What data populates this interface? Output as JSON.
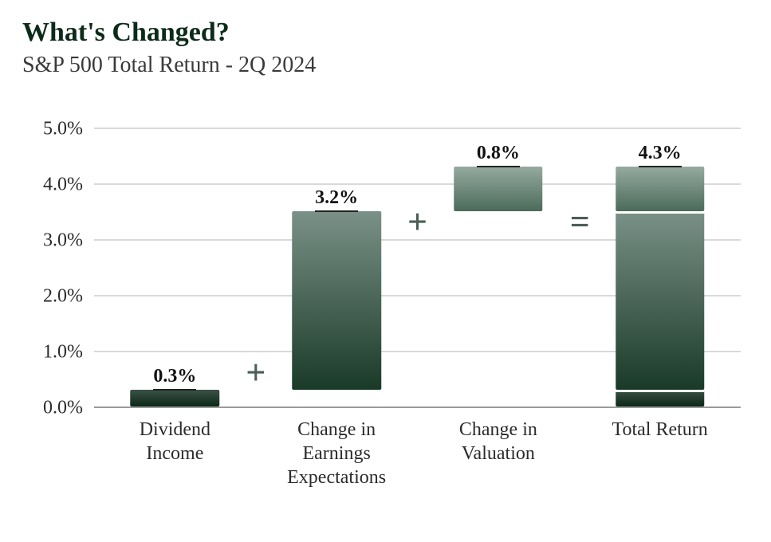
{
  "title": "What's Changed?",
  "subtitle": "S&P 500 Total Return - 2Q 2024",
  "chart": {
    "type": "waterfall-bar",
    "background_color": "#ffffff",
    "grid_color": "#d9d9d9",
    "baseline_color": "#9a9a9a",
    "text_color": "#2b2b2b",
    "title_color": "#0d2b1a",
    "title_fontsize": 34,
    "subtitle_fontsize": 28,
    "axis_fontsize": 24,
    "value_fontsize": 24,
    "operator_color": "#4a5f55",
    "ylim": [
      0,
      5.0
    ],
    "ytick_step": 1.0,
    "ytick_format": "{v}.0%",
    "yticks": [
      "0.0%",
      "1.0%",
      "2.0%",
      "3.0%",
      "4.0%",
      "5.0%"
    ],
    "bar_width_pct": 55,
    "slot_width_pct": 25,
    "categories": [
      {
        "key": "div",
        "label": "Dividend\nIncome",
        "value_label": "0.3%",
        "start": 0.0,
        "end": 0.3,
        "color": "dark",
        "op_after": "+"
      },
      {
        "key": "eps",
        "label": "Change in\nEarnings\nExpectations",
        "value_label": "3.2%",
        "start": 0.3,
        "end": 3.5,
        "color": "mid",
        "op_after": "+"
      },
      {
        "key": "val",
        "label": "Change in\nValuation",
        "value_label": "0.8%",
        "start": 3.5,
        "end": 4.3,
        "color": "lite",
        "op_after": "="
      },
      {
        "key": "tot",
        "label": "Total Return",
        "value_label": "4.3%",
        "total": true,
        "segments": [
          {
            "start": 0.0,
            "end": 0.3,
            "color": "dark"
          },
          {
            "start": 0.3,
            "end": 3.5,
            "color": "mid"
          },
          {
            "start": 3.5,
            "end": 4.3,
            "color": "lite"
          }
        ]
      }
    ],
    "bar_colors": {
      "dark": {
        "from": "#3b5248",
        "to": "#0b2817"
      },
      "mid": {
        "from": "#7a9187",
        "to": "#1a3a28"
      },
      "lite": {
        "from": "#95aaa0",
        "to": "#4b6b5a"
      }
    }
  }
}
